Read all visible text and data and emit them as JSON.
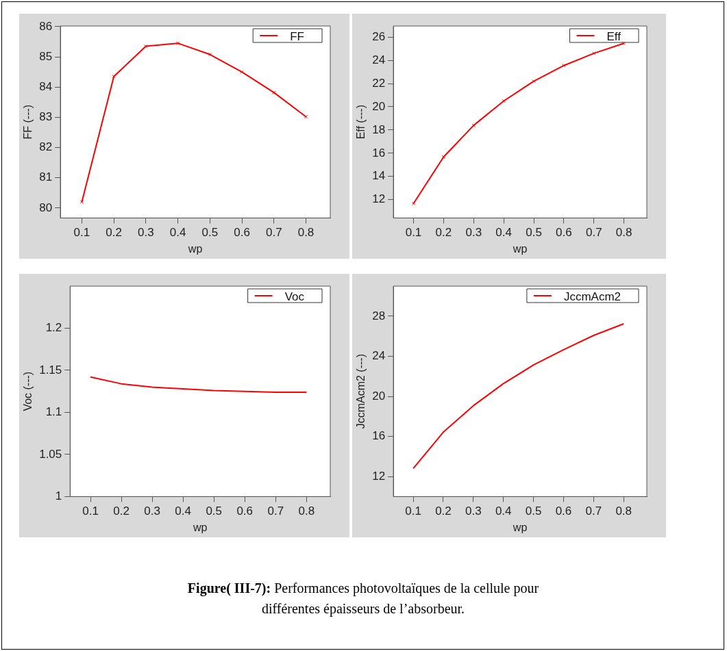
{
  "chart_data": [
    {
      "type": "line",
      "xlabel": "wp",
      "ylabel": "FF (---)",
      "x": [
        0.1,
        0.2,
        0.3,
        0.4,
        0.5,
        0.6,
        0.7,
        0.8
      ],
      "series": [
        {
          "name": "FF",
          "color": "#ff0000",
          "values": [
            80.2,
            84.35,
            85.35,
            85.45,
            85.08,
            84.5,
            83.82,
            83.02
          ]
        }
      ],
      "xlim": [
        0.033,
        0.876
      ],
      "xticks": [
        0.1,
        0.2,
        0.3,
        0.4,
        0.5,
        0.6,
        0.7,
        0.8
      ],
      "ylim": [
        79.67,
        86.02
      ],
      "yticks": [
        80,
        81,
        82,
        83,
        84,
        85,
        86
      ],
      "grid": false,
      "legend": "top right",
      "marker": "cross"
    },
    {
      "type": "line",
      "xlabel": "wp",
      "ylabel": "Eff (---)",
      "x": [
        0.1,
        0.2,
        0.3,
        0.4,
        0.5,
        0.6,
        0.7,
        0.8
      ],
      "series": [
        {
          "name": "Eff",
          "color": "#ff0000",
          "values": [
            11.68,
            15.68,
            18.4,
            20.5,
            22.2,
            23.55,
            24.6,
            25.46
          ]
        }
      ],
      "xlim": [
        0.033,
        0.876
      ],
      "xticks": [
        0.1,
        0.2,
        0.3,
        0.4,
        0.5,
        0.6,
        0.7,
        0.8
      ],
      "ylim": [
        10.43,
        26.95
      ],
      "yticks": [
        12,
        14,
        16,
        18,
        20,
        22,
        24,
        26
      ],
      "grid": false,
      "legend": "top right",
      "marker": "cross"
    },
    {
      "type": "line",
      "xlabel": "wp",
      "ylabel": "Voc (---)",
      "x": [
        0.1,
        0.2,
        0.3,
        0.4,
        0.5,
        0.6,
        0.7,
        0.8
      ],
      "series": [
        {
          "name": "Voc",
          "color": "#ff0000",
          "values": [
            1.142,
            1.134,
            1.13,
            1.128,
            1.126,
            1.125,
            1.124,
            1.124
          ]
        }
      ],
      "xlim": [
        0.034,
        0.877
      ],
      "xticks": [
        0.1,
        0.2,
        0.3,
        0.4,
        0.5,
        0.6,
        0.7,
        0.8
      ],
      "ylim": [
        1,
        1.25
      ],
      "yticks": [
        1,
        1.05,
        1.1,
        1.15,
        1.2
      ],
      "grid": false,
      "legend": "top right"
    },
    {
      "type": "line",
      "xlabel": "wp",
      "ylabel": "JccmAcm2 (---)",
      "x": [
        0.1,
        0.2,
        0.3,
        0.4,
        0.5,
        0.6,
        0.7,
        0.8
      ],
      "series": [
        {
          "name": "JccmAcm2",
          "color": "#ff0000",
          "values": [
            12.8,
            16.43,
            19.07,
            21.27,
            23.13,
            24.66,
            26.08,
            27.24
          ]
        }
      ],
      "xlim": [
        0.034,
        0.877
      ],
      "xticks": [
        0.1,
        0.2,
        0.3,
        0.4,
        0.5,
        0.6,
        0.7,
        0.8
      ],
      "ylim": [
        10,
        31
      ],
      "yticks": [
        12,
        16,
        20,
        24,
        28
      ],
      "grid": false,
      "legend": "top right",
      "annotations": [
        "Figure( III-7):",
        "Performances photovoltaïques de la cellule pour différentes épaisseurs de l’absorbeur."
      ]
    }
  ]
}
